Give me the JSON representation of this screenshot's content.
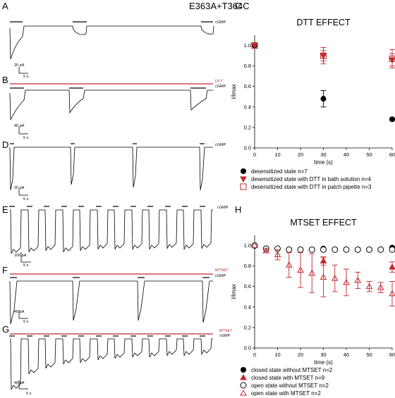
{
  "figure_title": "E363A+T364C",
  "panel_labels": {
    "A": "A",
    "B": "B",
    "C": "C",
    "D": "D",
    "E": "E",
    "F": "F",
    "G": "G",
    "H": "H"
  },
  "traces": {
    "A": {
      "bars": [
        "cGMP"
      ],
      "scale_y": "20 pA",
      "scale_x": "5 s"
    },
    "B": {
      "bars": [
        "DTT",
        "cGMP"
      ],
      "scale_y": "40 pA",
      "scale_x": "5 s"
    },
    "D": {
      "bars": [
        "cGMP"
      ],
      "scale_y": "20 pA",
      "scale_x": "5 s"
    },
    "E": {
      "bars": [
        "cGMP"
      ],
      "scale_y": "100 pA",
      "scale_x": "5 s"
    },
    "F": {
      "bars": [
        "MTSET",
        "cGMP"
      ],
      "scale_y": "40 pA",
      "scale_x": "5 s"
    },
    "G": {
      "bars": [
        "MTSET",
        "cGMP"
      ],
      "scale_y": "40 pA",
      "scale_x": "5 s"
    }
  },
  "colors": {
    "black": "#000000",
    "red": "#c0282d"
  },
  "chart_data": [
    {
      "type": "scatter",
      "title": "DTT EFFECT",
      "xlabel": "time (s)",
      "ylabel": "I/Imax",
      "xlim": [
        0,
        60
      ],
      "ylim": [
        0,
        1.1
      ],
      "xticks": [
        0,
        10,
        20,
        30,
        40,
        50,
        60
      ],
      "yticks": [
        "0.0",
        "0.2",
        "0.4",
        "0.6",
        "0.8",
        "1.0"
      ],
      "grid": false,
      "legend_position": "below",
      "series": [
        {
          "name": "desensitized state  n=7",
          "marker": "filled-circle",
          "color": "#000000",
          "points": [
            {
              "x": 0,
              "y": 1.0
            },
            {
              "x": 30,
              "y": 0.48,
              "err": 0.08
            },
            {
              "x": 60,
              "y": 0.28,
              "err": 0.01
            }
          ]
        },
        {
          "name": "desensitized state with DTT in bath solution n=4",
          "marker": "filled-triangle-down",
          "color": "#c0282d",
          "points": [
            {
              "x": 0,
              "y": 1.0
            },
            {
              "x": 30,
              "y": 0.9,
              "err": 0.05
            },
            {
              "x": 60,
              "y": 0.86,
              "err": 0.06
            }
          ]
        },
        {
          "name": "desensitized state with DTT in patch pipette n=3",
          "marker": "open-square",
          "color": "#c0282d",
          "points": [
            {
              "x": 0,
              "y": 1.0
            },
            {
              "x": 30,
              "y": 0.9,
              "err": 0.08
            },
            {
              "x": 60,
              "y": 0.87,
              "err": 0.09
            }
          ]
        }
      ]
    },
    {
      "type": "scatter",
      "title": "MTSET EFFECT",
      "xlabel": "time (s)",
      "ylabel": "I/Imax",
      "xlim": [
        0,
        60
      ],
      "ylim": [
        0,
        1.1
      ],
      "xticks": [
        0,
        10,
        20,
        30,
        40,
        50,
        60
      ],
      "yticks": [
        "0.0",
        "0.2",
        "0.4",
        "0.6",
        "0.8",
        "1.0"
      ],
      "grid": false,
      "legend_position": "below",
      "series": [
        {
          "name": "closed state without MTSET n=2",
          "marker": "filled-circle",
          "color": "#000000",
          "points": [
            {
              "x": 0,
              "y": 1.0
            },
            {
              "x": 30,
              "y": 0.97
            },
            {
              "x": 60,
              "y": 0.98
            }
          ]
        },
        {
          "name": "closed state with MTSET n=9",
          "marker": "filled-triangle-up",
          "color": "#c0282d",
          "points": [
            {
              "x": 0,
              "y": 1.0
            },
            {
              "x": 30,
              "y": 0.85,
              "err": 0.04
            },
            {
              "x": 60,
              "y": 0.79,
              "err": 0.05
            }
          ]
        },
        {
          "name": "open  state without MTSET n=2",
          "marker": "open-circle",
          "color": "#000000",
          "points": [
            {
              "x": 0,
              "y": 1.0
            },
            {
              "x": 5,
              "y": 0.97
            },
            {
              "x": 10,
              "y": 0.97
            },
            {
              "x": 15,
              "y": 0.96
            },
            {
              "x": 20,
              "y": 0.96
            },
            {
              "x": 25,
              "y": 0.96
            },
            {
              "x": 30,
              "y": 0.96
            },
            {
              "x": 35,
              "y": 0.96
            },
            {
              "x": 40,
              "y": 0.96
            },
            {
              "x": 45,
              "y": 0.96
            },
            {
              "x": 50,
              "y": 0.96
            },
            {
              "x": 55,
              "y": 0.96
            },
            {
              "x": 60,
              "y": 0.96
            }
          ]
        },
        {
          "name": "open state with MTSET n=2",
          "marker": "open-triangle-up",
          "color": "#c0282d",
          "points": [
            {
              "x": 0,
              "y": 1.0
            },
            {
              "x": 5,
              "y": 0.95,
              "err": 0.02
            },
            {
              "x": 10,
              "y": 0.91,
              "err": 0.05
            },
            {
              "x": 15,
              "y": 0.81,
              "err": 0.12
            },
            {
              "x": 20,
              "y": 0.76,
              "err": 0.17
            },
            {
              "x": 25,
              "y": 0.73,
              "err": 0.19
            },
            {
              "x": 30,
              "y": 0.69,
              "err": 0.19
            },
            {
              "x": 35,
              "y": 0.68,
              "err": 0.13
            },
            {
              "x": 40,
              "y": 0.64,
              "err": 0.13
            },
            {
              "x": 45,
              "y": 0.66,
              "err": 0.08
            },
            {
              "x": 50,
              "y": 0.6,
              "err": 0.05
            },
            {
              "x": 55,
              "y": 0.59,
              "err": 0.05
            },
            {
              "x": 60,
              "y": 0.53,
              "err": 0.12
            }
          ]
        }
      ]
    }
  ]
}
